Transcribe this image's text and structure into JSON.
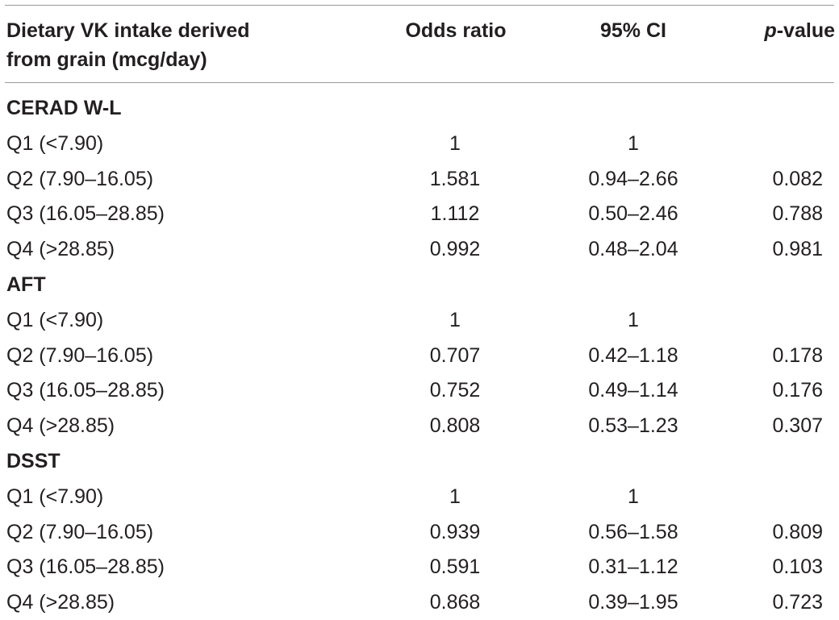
{
  "header": {
    "col0_line1": "Dietary VK intake derived",
    "col0_line2": "from grain (mcg/day)",
    "col1": "Odds ratio",
    "col2": "95% CI",
    "col3_italic": "p",
    "col3_rest": "-value"
  },
  "sections": [
    {
      "title": "CERAD W-L",
      "rows": [
        {
          "label": "Q1 (<7.90)",
          "or": "1",
          "ci": "1",
          "p": ""
        },
        {
          "label": "Q2 (7.90–16.05)",
          "or": "1.581",
          "ci": "0.94–2.66",
          "p": "0.082"
        },
        {
          "label": "Q3 (16.05–28.85)",
          "or": "1.112",
          "ci": "0.50–2.46",
          "p": "0.788"
        },
        {
          "label": "Q4 (>28.85)",
          "or": "0.992",
          "ci": "0.48–2.04",
          "p": "0.981"
        }
      ]
    },
    {
      "title": "AFT",
      "rows": [
        {
          "label": "Q1 (<7.90)",
          "or": "1",
          "ci": "1",
          "p": ""
        },
        {
          "label": "Q2 (7.90–16.05)",
          "or": "0.707",
          "ci": "0.42–1.18",
          "p": "0.178"
        },
        {
          "label": "Q3 (16.05–28.85)",
          "or": "0.752",
          "ci": "0.49–1.14",
          "p": "0.176"
        },
        {
          "label": "Q4 (>28.85)",
          "or": "0.808",
          "ci": "0.53–1.23",
          "p": "0.307"
        }
      ]
    },
    {
      "title": "DSST",
      "rows": [
        {
          "label": "Q1 (<7.90)",
          "or": "1",
          "ci": "1",
          "p": ""
        },
        {
          "label": "Q2 (7.90–16.05)",
          "or": "0.939",
          "ci": "0.56–1.58",
          "p": "0.809"
        },
        {
          "label": "Q3 (16.05–28.85)",
          "or": "0.591",
          "ci": "0.31–1.12",
          "p": "0.103"
        },
        {
          "label": "Q4 (>28.85)",
          "or": "0.868",
          "ci": "0.39–1.95",
          "p": "0.723"
        }
      ]
    }
  ]
}
